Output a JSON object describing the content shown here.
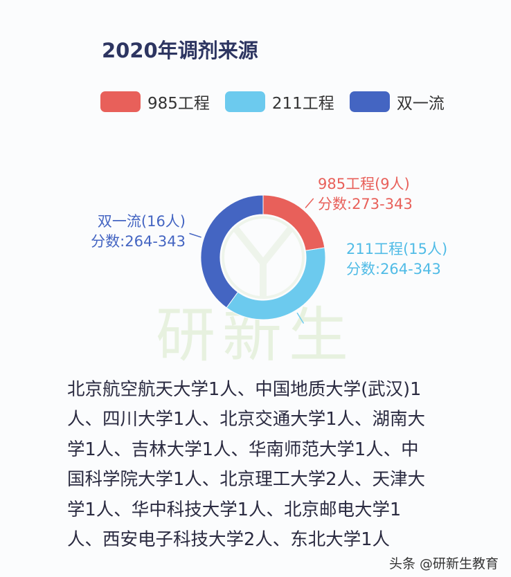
{
  "chart_data": {
    "type": "pie",
    "donut": true,
    "title": "2020年调剂来源",
    "legend_position": "top",
    "series": [
      {
        "name": "985工程",
        "value": 9,
        "label": "985工程(9人)",
        "score_label": "分数:273-343",
        "color": "#e8605a"
      },
      {
        "name": "211工程",
        "value": 15,
        "label": "211工程(15人)",
        "score_label": "分数:264-343",
        "color": "#6ccaee"
      },
      {
        "name": "双一流",
        "value": 16,
        "label": "双一流(16人)",
        "score_label": "分数:264-343",
        "color": "#4465c2"
      }
    ]
  },
  "watermark": "研新生",
  "body_lines": [
    "北京航空航天大学1人、中国地质大学(武汉)1",
    "人、四川大学1人、北京交通大学1人、湖南大",
    "学1人、吉林大学1人、华南师范大学1人、中",
    "国科学院大学1人、北京理工大学2人、天津大",
    "学1人、华中科技大学1人、北京邮电大学1",
    "人、西安电子科技大学2人、东北大学1人"
  ],
  "footer": "头条 @研新生教育"
}
